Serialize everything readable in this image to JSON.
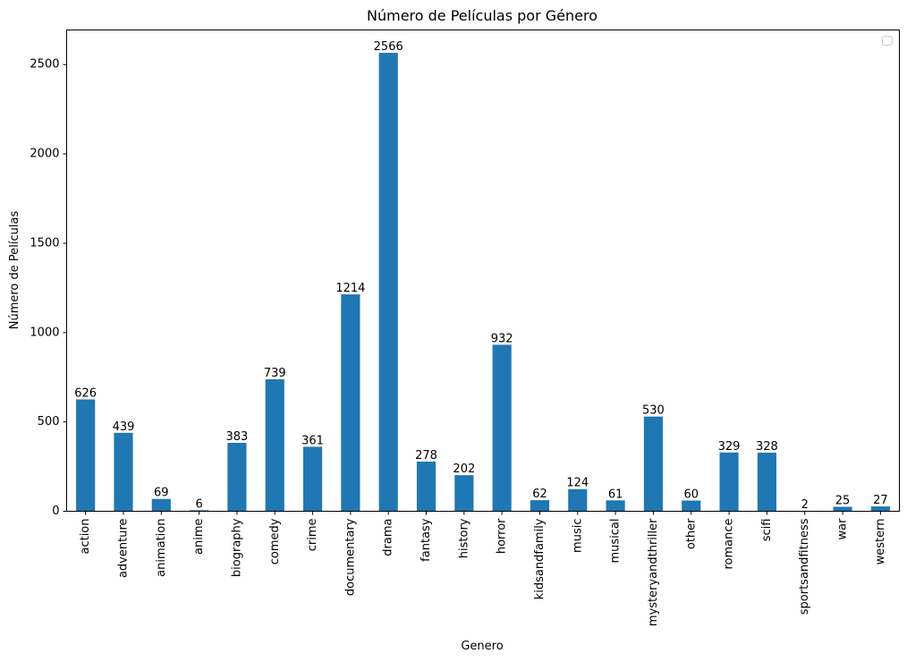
{
  "chart_data": {
    "type": "bar",
    "title": "Número de Películas por Género",
    "xlabel": "Genero",
    "ylabel": "Número de Películas",
    "categories": [
      "action",
      "adventure",
      "animation",
      "anime",
      "biography",
      "comedy",
      "crime",
      "documentary",
      "drama",
      "fantasy",
      "history",
      "horror",
      "kidsandfamily",
      "music",
      "musical",
      "mysteryandthriller",
      "other",
      "romance",
      "scifi",
      "sportsandfitness",
      "war",
      "western"
    ],
    "values": [
      626,
      439,
      69,
      6,
      383,
      739,
      361,
      1214,
      2566,
      278,
      202,
      932,
      62,
      124,
      61,
      530,
      60,
      329,
      328,
      2,
      25,
      27
    ],
    "ylim": [
      0,
      2694
    ],
    "yticks": [
      0,
      500,
      1000,
      1500,
      2000,
      2500
    ],
    "bar_color": "#1f77b4",
    "grid": false,
    "legend": "top-right",
    "legend_entries": []
  }
}
